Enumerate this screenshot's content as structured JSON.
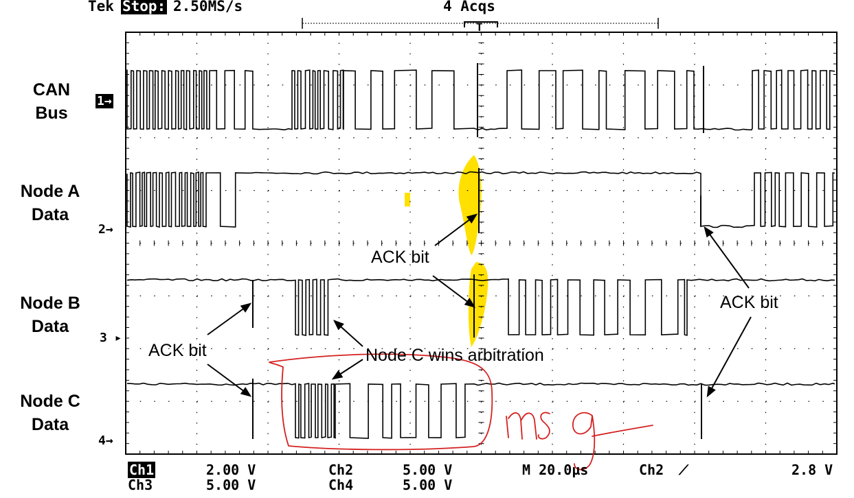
{
  "scope": {
    "brand": "Tek",
    "state": "Stop:",
    "sample_rate": "2.50MS/s",
    "acquisitions": "4 Acqs",
    "trigger_marker": "T"
  },
  "channels": [
    {
      "label_line1": "CAN",
      "label_line2": "Bus",
      "marker": "1→"
    },
    {
      "label_line1": "Node A",
      "label_line2": "Data",
      "marker": "2→"
    },
    {
      "label_line1": "Node B",
      "label_line2": "Data",
      "marker": "3 ▸"
    },
    {
      "label_line1": "Node C",
      "label_line2": "Data",
      "marker": "4→"
    }
  ],
  "annotations": {
    "ack_a": "ACK bit",
    "ack_b": "ACK bit",
    "ack_left": "ACK bit",
    "ack_right": "ACK bit",
    "arbitration": "Node C wins arbitration",
    "handwritten": "msg"
  },
  "footer": {
    "ch1_label": "Ch1",
    "ch1_value": "2.00 V",
    "ch2_label": "Ch2",
    "ch2_value": "5.00 V",
    "ch3_label": "Ch3",
    "ch3_value": "5.00 V",
    "ch4_label": "Ch4",
    "ch4_value": "5.00 V",
    "timebase": "M 20.0µs",
    "trigger_source": "Ch2",
    "trigger_slope": "⟋",
    "trigger_level": "2.8 V"
  },
  "colors": {
    "trace": "#000000",
    "highlight": "#ffe000",
    "pen": "#d42020",
    "grid": "#000000"
  }
}
